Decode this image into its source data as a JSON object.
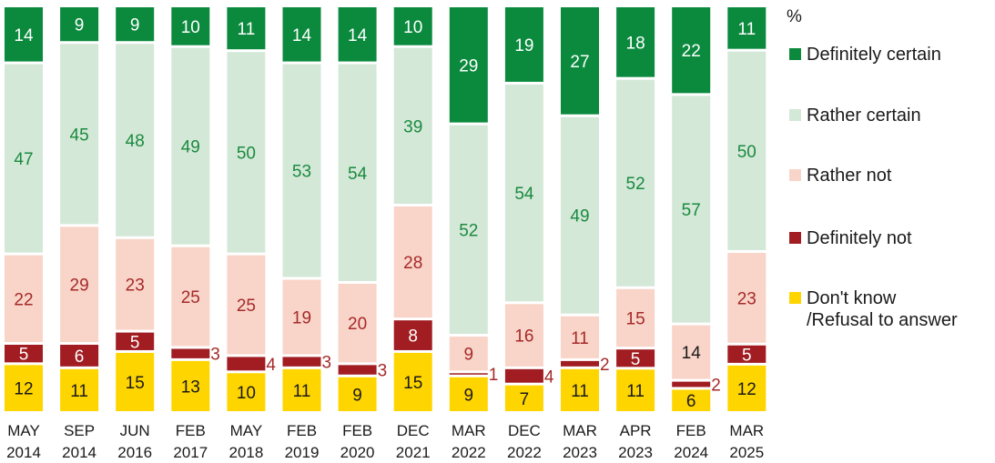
{
  "chart_data": {
    "type": "bar",
    "stacked": true,
    "orientation": "vertical",
    "unit": "%",
    "categories": [
      [
        "MAY",
        "2014"
      ],
      [
        "SEP",
        "2014"
      ],
      [
        "JUN",
        "2016"
      ],
      [
        "FEB",
        "2017"
      ],
      [
        "MAY",
        "2018"
      ],
      [
        "FEB",
        "2019"
      ],
      [
        "FEB",
        "2020"
      ],
      [
        "DEC",
        "2021"
      ],
      [
        "MAR",
        "2022"
      ],
      [
        "DEC",
        "2022"
      ],
      [
        "MAR",
        "2023"
      ],
      [
        "APR",
        "2023"
      ],
      [
        "FEB",
        "2024"
      ],
      [
        "MAR",
        "2025"
      ]
    ],
    "series": [
      {
        "name": "Definitely certain",
        "color": "#0b8a3e",
        "label_color": "#ffffff",
        "values": [
          14,
          9,
          9,
          10,
          11,
          14,
          14,
          10,
          29,
          19,
          27,
          18,
          22,
          11
        ]
      },
      {
        "name": "Rather certain",
        "color": "#d4e8d8",
        "label_color": "#1a8a3e",
        "values": [
          47,
          45,
          48,
          49,
          50,
          53,
          54,
          39,
          52,
          54,
          49,
          52,
          57,
          50
        ]
      },
      {
        "name": "Rather not",
        "color": "#f9d4c8",
        "label_color": "#a52a2a",
        "values": [
          22,
          29,
          23,
          25,
          25,
          19,
          20,
          28,
          9,
          16,
          11,
          15,
          14,
          23
        ]
      },
      {
        "name": "Definitely not",
        "color": "#a11d22",
        "label_color": "#ffffff",
        "values": [
          5,
          6,
          5,
          3,
          4,
          3,
          3,
          8,
          1,
          4,
          2,
          5,
          2,
          5
        ]
      },
      {
        "name": "Don't know\n/Refusal to answer",
        "color": "#ffd500",
        "label_color": "#1a1a1a",
        "values": [
          12,
          11,
          15,
          13,
          10,
          11,
          9,
          15,
          9,
          7,
          11,
          11,
          6,
          12
        ]
      }
    ],
    "label_overrides": [
      {
        "bar": 8,
        "series": 2,
        "color": "#a52a2a"
      },
      {
        "bar": 12,
        "series": 2,
        "color": "#1a1a1a"
      }
    ],
    "outside_labels": [
      {
        "bar": 3,
        "series": 3
      },
      {
        "bar": 4,
        "series": 3
      },
      {
        "bar": 5,
        "series": 3
      },
      {
        "bar": 6,
        "series": 3
      },
      {
        "bar": 8,
        "series": 3
      },
      {
        "bar": 9,
        "series": 3
      },
      {
        "bar": 10,
        "series": 3
      },
      {
        "bar": 12,
        "series": 3
      }
    ],
    "legend_position": "right",
    "grid": false
  },
  "legend": {
    "unit": "%"
  }
}
